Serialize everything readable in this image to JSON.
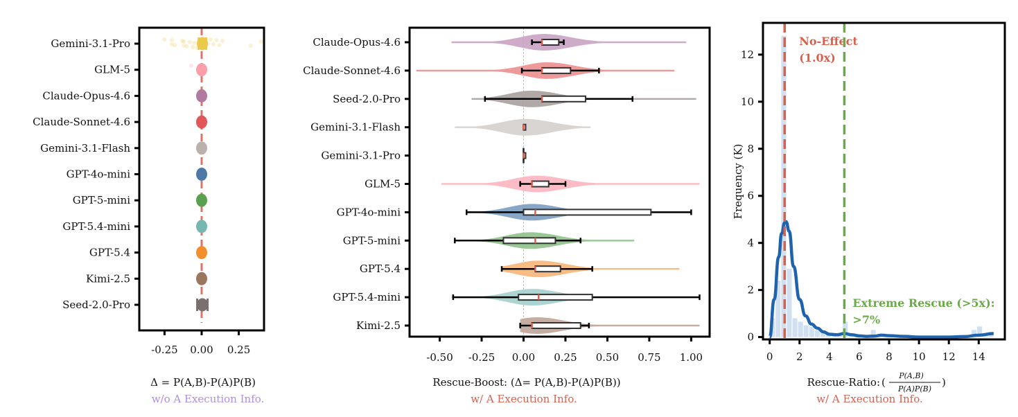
{
  "chart_data": [
    {
      "type": "scatter",
      "title": "",
      "xlabel": "Δ = P(A,B)-P(A)P(B)",
      "xlabel_sub": "w/o A Execution Info.",
      "xlabel_sub_color": "#b08ee0",
      "xlim": [
        -0.42,
        0.42
      ],
      "xticks": [
        -0.25,
        0.0,
        0.25
      ],
      "xtick_labels": [
        "-0.25",
        "0.00",
        "0.25"
      ],
      "reference_line": {
        "x": 0.0,
        "color": "#d9766a",
        "style": "dashed"
      },
      "categories": [
        "Gemini-3.1-Pro",
        "GLM-5",
        "Claude-Opus-4.6",
        "Claude-Sonnet-4.6",
        "Gemini-3.1-Flash",
        "GPT-4o-mini",
        "GPT-5-mini",
        "GPT-5.4-mini",
        "GPT-5.4",
        "Kimi-2.5",
        "Seed-2.0-Pro"
      ],
      "series": [
        {
          "name": "Gemini-3.1-Pro",
          "mean": 0.005,
          "ci": [
            -0.02,
            0.03
          ],
          "color": "#ecc94b",
          "jitter": [
            -0.25,
            -0.2,
            -0.2,
            -0.18,
            -0.13,
            -0.12,
            -0.12,
            -0.1,
            -0.08,
            -0.06,
            -0.05,
            -0.03,
            0.04,
            0.06,
            0.08,
            0.1,
            0.12,
            0.14,
            0.33,
            0.4
          ]
        },
        {
          "name": "GLM-5",
          "mean": 0.0,
          "ci": [
            0.0,
            0.0
          ],
          "color": "#fd9eaa",
          "jitter": [
            -0.07,
            0.0
          ]
        },
        {
          "name": "Claude-Opus-4.6",
          "mean": 0.0,
          "ci": [
            0.0,
            0.0
          ],
          "color": "#b07aa1",
          "jitter": []
        },
        {
          "name": "Claude-Sonnet-4.6",
          "mean": 0.0,
          "ci": [
            0.0,
            0.0
          ],
          "color": "#e15759",
          "jitter": []
        },
        {
          "name": "Gemini-3.1-Flash",
          "mean": 0.0,
          "ci": [
            0.0,
            0.0
          ],
          "color": "#bab0ac",
          "jitter": []
        },
        {
          "name": "GPT-4o-mini",
          "mean": 0.0,
          "ci": [
            0.0,
            0.0
          ],
          "color": "#4e79a7",
          "jitter": []
        },
        {
          "name": "GPT-5-mini",
          "mean": 0.0,
          "ci": [
            0.0,
            0.0
          ],
          "color": "#59a14f",
          "jitter": []
        },
        {
          "name": "GPT-5.4-mini",
          "mean": 0.0,
          "ci": [
            0.0,
            0.0
          ],
          "color": "#76b7b2",
          "jitter": []
        },
        {
          "name": "GPT-5.4",
          "mean": 0.0,
          "ci": [
            0.0,
            0.0
          ],
          "color": "#f28e2b",
          "jitter": []
        },
        {
          "name": "Kimi-2.5",
          "mean": 0.0,
          "ci": [
            0.0,
            0.0
          ],
          "color": "#9c755f",
          "jitter": []
        },
        {
          "name": "Seed-2.0-Pro",
          "mean": 0.005,
          "ci": [
            -0.03,
            0.04
          ],
          "color": "#79706e",
          "jitter": []
        }
      ]
    },
    {
      "type": "violin",
      "title": "",
      "xlabel": "Rescue-Boost: (Δ= P(A,B)-P(A)P(B))",
      "xlabel_sub": "w/ A Execution Info.",
      "xlabel_sub_color": "#d9604c",
      "xlim": [
        -0.68,
        1.11
      ],
      "xticks": [
        -0.5,
        -0.25,
        0.0,
        0.25,
        0.5,
        0.75,
        1.0
      ],
      "xtick_labels": [
        "-0.50",
        "-0.25",
        "0.00",
        "0.25",
        "0.50",
        "0.75",
        "1.00"
      ],
      "reference_line": {
        "x": 0.0,
        "color": "#aaaaaa",
        "style": "dashed"
      },
      "categories": [
        "Claude-Opus-4.6",
        "Claude-Sonnet-4.6",
        "Seed-2.0-Pro",
        "Gemini-3.1-Flash",
        "Gemini-3.1-Pro",
        "GLM-5",
        "GPT-4o-mini",
        "GPT-5-mini",
        "GPT-5.4",
        "GPT-5.4-mini",
        "Kimi-2.5"
      ],
      "series": [
        {
          "name": "Claude-Opus-4.6",
          "color": "#c9a2c2",
          "range": [
            -0.43,
            0.97
          ],
          "mode": 0.12,
          "width": 0.55,
          "whisker": [
            0.05,
            0.24
          ],
          "q1": 0.11,
          "q3": 0.21,
          "median": 0.11
        },
        {
          "name": "Claude-Sonnet-4.6",
          "color": "#ec8f90",
          "range": [
            -0.64,
            0.9
          ],
          "mode": 0.14,
          "width": 0.6,
          "whisker": [
            -0.01,
            0.45
          ],
          "q1": 0.11,
          "q3": 0.28,
          "median": 0.11
        },
        {
          "name": "Seed-2.0-Pro",
          "color": "#a8a09e",
          "range": [
            -0.31,
            1.03
          ],
          "mode": 0.05,
          "width": 0.65,
          "whisker": [
            -0.23,
            0.65
          ],
          "q1": 0.11,
          "q3": 0.37,
          "median": 0.11
        },
        {
          "name": "Gemini-3.1-Flash",
          "color": "#d4cfcc",
          "range": [
            -0.41,
            0.4
          ],
          "mode": 0.01,
          "width": 0.7,
          "whisker": [
            0.0,
            0.01
          ],
          "q1": 0.0,
          "q3": 0.01,
          "median": 0.0
        },
        {
          "name": "Gemini-3.1-Pro",
          "color": "#ecc94b",
          "range": [
            0.0,
            0.0
          ],
          "mode": 0.0,
          "width": 0.0,
          "whisker": [
            0.0,
            0.0
          ],
          "q1": 0.0,
          "q3": 0.0,
          "median": 0.0
        },
        {
          "name": "GLM-5",
          "color": "#fdb5bf",
          "range": [
            -0.49,
            1.05
          ],
          "mode": 0.08,
          "width": 0.5,
          "whisker": [
            -0.02,
            0.25
          ],
          "q1": 0.05,
          "q3": 0.15,
          "median": 0.05
        },
        {
          "name": "GPT-4o-mini",
          "color": "#7b9cc0",
          "range": [
            -0.34,
            1.0
          ],
          "mode": 0.05,
          "width": 0.65,
          "whisker": [
            -0.34,
            1.0
          ],
          "q1": 0.0,
          "q3": 0.76,
          "median": 0.07
        },
        {
          "name": "GPT-5-mini",
          "color": "#8fc28a",
          "range": [
            -0.41,
            0.66
          ],
          "mode": 0.04,
          "width": 0.65,
          "whisker": [
            -0.41,
            0.34
          ],
          "q1": -0.12,
          "q3": 0.19,
          "median": 0.07
        },
        {
          "name": "GPT-5.4",
          "color": "#f7b679",
          "range": [
            -0.13,
            0.93
          ],
          "mode": 0.09,
          "width": 0.6,
          "whisker": [
            -0.13,
            0.41
          ],
          "q1": 0.07,
          "q3": 0.22,
          "median": 0.07
        },
        {
          "name": "GPT-5.4-mini",
          "color": "#a3cfcc",
          "range": [
            -0.43,
            1.05
          ],
          "mode": 0.05,
          "width": 0.65,
          "whisker": [
            -0.42,
            1.05
          ],
          "q1": -0.03,
          "q3": 0.41,
          "median": 0.09
        },
        {
          "name": "Kimi-2.5",
          "color": "#bfa597",
          "range": [
            -0.02,
            1.05
          ],
          "mode": 0.08,
          "width": 0.65,
          "whisker": [
            -0.02,
            0.39
          ],
          "q1": 0.05,
          "q3": 0.34,
          "median": 0.05
        }
      ]
    },
    {
      "type": "histogram",
      "title": "",
      "xlabel": "Rescue-Ratio: ",
      "xlabel_frac_num": "P(A,B)",
      "xlabel_frac_den": "P(A)P(B)",
      "xlabel_sub": "w/ A Execution Info.",
      "xlabel_sub_color": "#d9604c",
      "ylabel": "Frequency (K)",
      "xlim": [
        -0.45,
        15.75
      ],
      "ylim": [
        -0.1,
        13.35
      ],
      "xticks": [
        0,
        2,
        4,
        6,
        8,
        10,
        12,
        14
      ],
      "yticks": [
        0,
        2,
        4,
        6,
        8,
        10,
        12
      ],
      "bin_width": 0.375,
      "bins_start": [
        0.0,
        0.375,
        0.75,
        1.125,
        1.5,
        1.875,
        2.25,
        2.625,
        3.0,
        3.375,
        3.75,
        4.125,
        4.5,
        4.875,
        5.25,
        5.625,
        6.0,
        6.375,
        6.75,
        7.125,
        7.5,
        7.875,
        8.25,
        8.625,
        9.0,
        9.375,
        9.75,
        10.125,
        10.5,
        10.875,
        11.25,
        11.625,
        12.0,
        12.375,
        12.75,
        13.125,
        13.5,
        13.875,
        14.25,
        14.625
      ],
      "values": [
        0.8,
        2.4,
        12.8,
        2.9,
        0.8,
        0.65,
        0.5,
        0.45,
        0.3,
        0.2,
        0.15,
        0.12,
        0.1,
        0.65,
        0.08,
        0.06,
        0.05,
        0.05,
        0.3,
        0.08,
        0.05,
        0.04,
        0.04,
        0.04,
        0.1,
        0.05,
        0.03,
        0.03,
        0.02,
        0.02,
        0.02,
        0.02,
        0.02,
        0.03,
        0.04,
        0.04,
        0.3,
        0.45,
        0.1,
        0.08
      ],
      "kde": {
        "x": [
          0.0,
          0.3,
          0.6,
          0.8,
          1.0,
          1.1,
          1.3,
          1.6,
          2.0,
          2.4,
          2.8,
          3.2,
          3.6,
          4.0,
          4.5,
          5.0,
          5.5,
          6.0,
          6.5,
          7.0,
          7.5,
          8.0,
          9.0,
          10.0,
          11.0,
          12.0,
          13.0,
          14.0,
          15.0
        ],
        "y": [
          0.0,
          1.6,
          3.4,
          4.4,
          4.85,
          4.9,
          4.5,
          3.0,
          1.6,
          0.9,
          0.55,
          0.38,
          0.22,
          0.12,
          0.1,
          0.15,
          0.1,
          0.05,
          0.03,
          0.04,
          0.08,
          0.06,
          0.03,
          0.0,
          -0.02,
          -0.03,
          0.02,
          0.08,
          0.15
        ]
      },
      "reference_lines": [
        {
          "x": 1.0,
          "color": "#d9604c",
          "label": "No-Effect",
          "label2": "(1.0x)"
        },
        {
          "x": 5.0,
          "color": "#6aaa48",
          "label": "Extreme Rescue (>5x):",
          "label2": ">7%"
        }
      ],
      "hist_color": "#b7cfe8",
      "kde_color": "#2063ad"
    }
  ]
}
